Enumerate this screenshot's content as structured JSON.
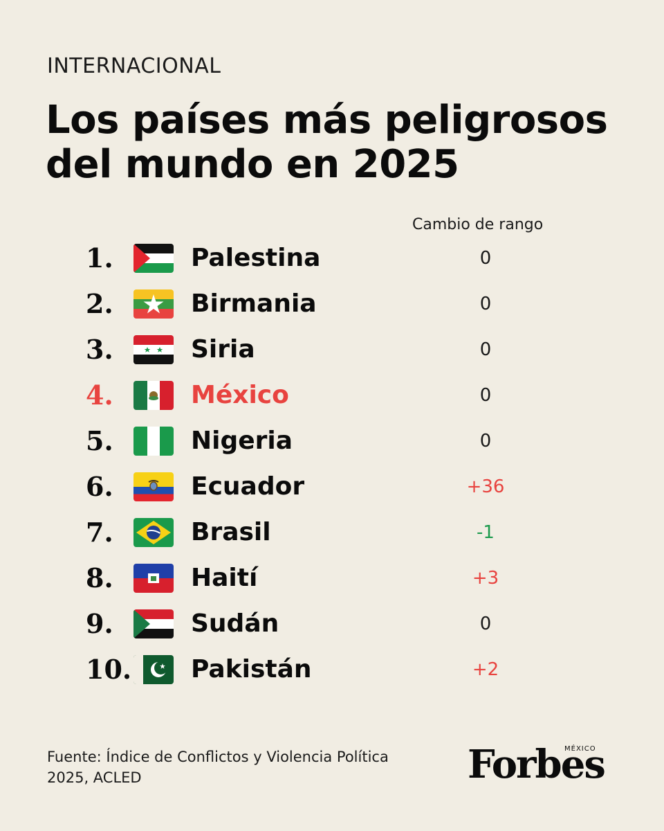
{
  "header": {
    "kicker": "INTERNACIONAL",
    "title": "Los países más peligrosos del mundo en 2025"
  },
  "table": {
    "change_header": "Cambio de rango",
    "rows": [
      {
        "rank": "1.",
        "country": "Palestina",
        "change": "0",
        "flag": "palestine-flag-icon"
      },
      {
        "rank": "2.",
        "country": "Birmania",
        "change": "0",
        "flag": "myanmar-flag-icon"
      },
      {
        "rank": "3.",
        "country": "Siria",
        "change": "0",
        "flag": "syria-flag-icon"
      },
      {
        "rank": "4.",
        "country": "México",
        "change": "0",
        "flag": "mexico-flag-icon"
      },
      {
        "rank": "5.",
        "country": "Nigeria",
        "change": "0",
        "flag": "nigeria-flag-icon"
      },
      {
        "rank": "6.",
        "country": "Ecuador",
        "change": "+36",
        "flag": "ecuador-flag-icon"
      },
      {
        "rank": "7.",
        "country": "Brasil",
        "change": "-1",
        "flag": "brazil-flag-icon"
      },
      {
        "rank": "8.",
        "country": "Haití",
        "change": "+3",
        "flag": "haiti-flag-icon"
      },
      {
        "rank": "9.",
        "country": "Sudán",
        "change": "0",
        "flag": "sudan-flag-icon"
      },
      {
        "rank": "10.",
        "country": "Pakistán",
        "change": "+2",
        "flag": "pakistan-flag-icon"
      }
    ]
  },
  "footer": {
    "source": "Fuente: Índice de Conflictos y Violencia Política 2025, ACLED",
    "logo_word": "Forbes",
    "logo_edition": "MÉXICO"
  },
  "colors": {
    "background": "#f1ede3",
    "highlight": "#e8433f",
    "increase": "#e8433f",
    "decrease": "#1b9a4c"
  }
}
